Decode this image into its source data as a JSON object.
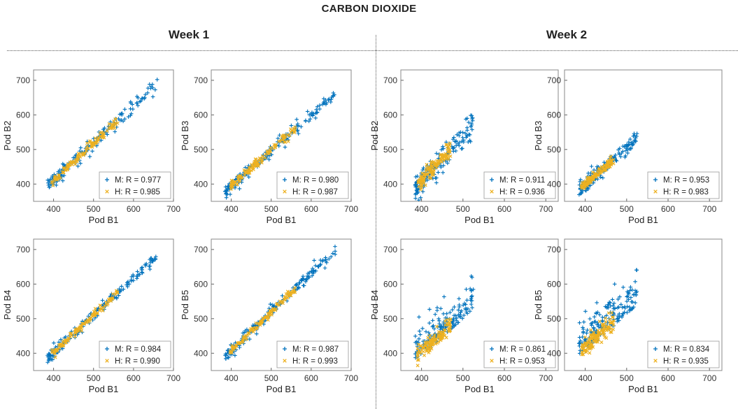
{
  "title": "CARBON DIOXIDE",
  "week_titles": [
    "Week 1",
    "Week 2"
  ],
  "colors": {
    "M": "#0072BD",
    "H": "#EDB120",
    "M_dark": "#005a96",
    "H_dark": "#c98f00"
  },
  "chart_data": [
    {
      "type": "scatter",
      "week": "Week 1",
      "xlabel": "Pod B1",
      "ylabel": "Pod B2",
      "xlim": [
        350,
        700
      ],
      "ylim": [
        350,
        730
      ],
      "xticks": [
        400,
        500,
        600,
        700
      ],
      "yticks": [
        400,
        500,
        600,
        700
      ],
      "legend_position": "bottom-right",
      "series": [
        {
          "name": "M: R = 0.977",
          "marker": "+",
          "x_range": [
            385,
            660
          ],
          "slope": 1.08,
          "intercept": -22,
          "noise": 11
        },
        {
          "name": "H: R = 0.985",
          "marker": "x",
          "x_range": [
            395,
            560
          ],
          "slope": 1.08,
          "intercept": -22,
          "noise": 6
        }
      ]
    },
    {
      "type": "scatter",
      "week": "Week 1",
      "xlabel": "Pod B1",
      "ylabel": "Pod B3",
      "xlim": [
        350,
        700
      ],
      "ylim": [
        350,
        730
      ],
      "xticks": [
        400,
        500,
        600,
        700
      ],
      "yticks": [
        400,
        500,
        600,
        700
      ],
      "legend_position": "bottom-right",
      "series": [
        {
          "name": "M: R = 0.980",
          "marker": "+",
          "x_range": [
            385,
            660
          ],
          "slope": 1.02,
          "intercept": -12,
          "noise": 10
        },
        {
          "name": "H: R = 0.987",
          "marker": "x",
          "x_range": [
            395,
            560
          ],
          "slope": 1.02,
          "intercept": -12,
          "noise": 6
        }
      ]
    },
    {
      "type": "scatter",
      "week": "Week 2",
      "xlabel": "Pod B1",
      "ylabel": "Pod B2",
      "xlim": [
        350,
        730
      ],
      "ylim": [
        350,
        730
      ],
      "xticks": [
        400,
        500,
        600,
        700
      ],
      "yticks": [
        400,
        500,
        600,
        700
      ],
      "legend_position": "bottom-right",
      "series": [
        {
          "name": "M: R = 0.911",
          "marker": "+",
          "x_range": [
            385,
            525
          ],
          "slope": 1.3,
          "intercept": -110,
          "noise": 20
        },
        {
          "name": "H: R = 0.936",
          "marker": "x",
          "x_range": [
            390,
            470
          ],
          "slope": 1.3,
          "intercept": -110,
          "noise": 13
        }
      ]
    },
    {
      "type": "scatter",
      "week": "Week 2",
      "xlabel": "Pod B1",
      "ylabel": "Pod B3",
      "xlim": [
        350,
        730
      ],
      "ylim": [
        350,
        730
      ],
      "xticks": [
        400,
        500,
        600,
        700
      ],
      "yticks": [
        400,
        500,
        600,
        700
      ],
      "legend_position": "bottom-right",
      "series": [
        {
          "name": "M: R = 0.953",
          "marker": "+",
          "x_range": [
            385,
            525
          ],
          "slope": 1.05,
          "intercept": -20,
          "noise": 11
        },
        {
          "name": "H: R = 0.983",
          "marker": "x",
          "x_range": [
            390,
            470
          ],
          "slope": 1.05,
          "intercept": -20,
          "noise": 6
        }
      ]
    },
    {
      "type": "scatter",
      "week": "Week 1",
      "xlabel": "Pod B1",
      "ylabel": "Pod B4",
      "xlim": [
        350,
        700
      ],
      "ylim": [
        350,
        730
      ],
      "xticks": [
        400,
        500,
        600,
        700
      ],
      "yticks": [
        400,
        500,
        600,
        700
      ],
      "legend_position": "bottom-right",
      "series": [
        {
          "name": "M: R = 0.984",
          "marker": "+",
          "x_range": [
            385,
            660
          ],
          "slope": 1.08,
          "intercept": -30,
          "noise": 9
        },
        {
          "name": "H: R = 0.990",
          "marker": "x",
          "x_range": [
            395,
            560
          ],
          "slope": 1.08,
          "intercept": -30,
          "noise": 5
        }
      ]
    },
    {
      "type": "scatter",
      "week": "Week 1",
      "xlabel": "Pod B1",
      "ylabel": "Pod B5",
      "xlim": [
        350,
        700
      ],
      "ylim": [
        350,
        730
      ],
      "xticks": [
        400,
        500,
        600,
        700
      ],
      "yticks": [
        400,
        500,
        600,
        700
      ],
      "legend_position": "bottom-right",
      "series": [
        {
          "name": "M: R = 0.987",
          "marker": "+",
          "x_range": [
            385,
            660
          ],
          "slope": 1.12,
          "intercept": -40,
          "noise": 9
        },
        {
          "name": "H: R = 0.993",
          "marker": "x",
          "x_range": [
            395,
            560
          ],
          "slope": 1.12,
          "intercept": -40,
          "noise": 5
        }
      ]
    },
    {
      "type": "scatter",
      "week": "Week 2",
      "xlabel": "Pod B1",
      "ylabel": "Pod B4",
      "xlim": [
        350,
        730
      ],
      "ylim": [
        350,
        730
      ],
      "xticks": [
        400,
        500,
        600,
        700
      ],
      "yticks": [
        400,
        500,
        600,
        700
      ],
      "legend_position": "bottom-right",
      "series": [
        {
          "name": "M: R = 0.861",
          "marker": "+",
          "x_range": [
            385,
            525
          ],
          "slope": 1.05,
          "intercept": -15,
          "noise": 35
        },
        {
          "name": "H: R = 0.953",
          "marker": "x",
          "x_range": [
            390,
            470
          ],
          "slope": 1.05,
          "intercept": -15,
          "noise": 12
        }
      ]
    },
    {
      "type": "scatter",
      "week": "Week 2",
      "xlabel": "Pod B1",
      "ylabel": "Pod B5",
      "xlim": [
        350,
        730
      ],
      "ylim": [
        350,
        730
      ],
      "xticks": [
        400,
        500,
        600,
        700
      ],
      "yticks": [
        400,
        500,
        600,
        700
      ],
      "legend_position": "bottom-right",
      "series": [
        {
          "name": "M: R = 0.834",
          "marker": "+",
          "x_range": [
            385,
            525
          ],
          "slope": 1.08,
          "intercept": -15,
          "noise": 40
        },
        {
          "name": "H: R = 0.935",
          "marker": "x",
          "x_range": [
            390,
            470
          ],
          "slope": 1.08,
          "intercept": -15,
          "noise": 13
        }
      ]
    }
  ]
}
